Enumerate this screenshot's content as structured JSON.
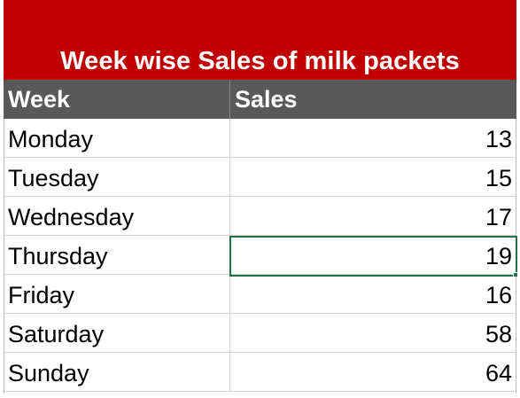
{
  "title": "Week wise Sales of milk packets",
  "columns": {
    "week": "Week",
    "sales": "Sales"
  },
  "rows": [
    {
      "week": "Monday",
      "sales": "13"
    },
    {
      "week": "Tuesday",
      "sales": "15"
    },
    {
      "week": "Wednesday",
      "sales": "17"
    },
    {
      "week": "Thursday",
      "sales": "19"
    },
    {
      "week": "Friday",
      "sales": "16"
    },
    {
      "week": "Saturday",
      "sales": "58"
    },
    {
      "week": "Sunday",
      "sales": "64"
    }
  ],
  "selected_row": 3,
  "colors": {
    "title_bg": "#c00000",
    "header_bg": "#595959",
    "selection": "#217346"
  }
}
